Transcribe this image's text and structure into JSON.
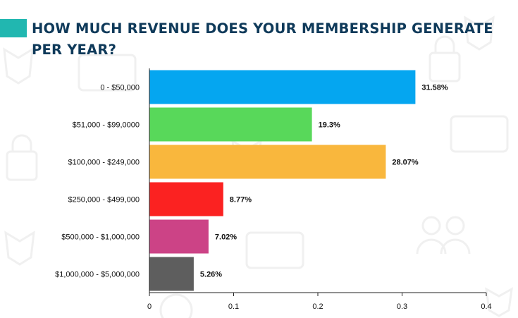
{
  "header": {
    "title": "HOW MUCH REVENUE DOES YOUR MEMBERSHIP GENERATE PER YEAR?",
    "accent_color": "#21b7b0",
    "title_color": "#0f3a5a"
  },
  "chart_data": {
    "type": "bar",
    "orientation": "horizontal",
    "title": "HOW MUCH REVENUE DOES YOUR MEMBERSHIP GENERATE PER YEAR?",
    "categories": [
      "0 -  $50,000",
      "$51,000 - $99,0000",
      "$100,000 - $249,000",
      "$250,000 - $499,000",
      "$500,000 - $1,000,000",
      "$1,000,000 - $5,000,000"
    ],
    "values": [
      0.3158,
      0.193,
      0.2807,
      0.0877,
      0.0702,
      0.0526
    ],
    "data_labels": [
      "31.58%",
      "19.3%",
      "28.07%",
      "8.77%",
      "7.02%",
      "5.26%"
    ],
    "colors": [
      "#05a6f0",
      "#58d85a",
      "#f9b73d",
      "#fb2221",
      "#cc4386",
      "#5e5e5e"
    ],
    "xlim": [
      0,
      0.4
    ],
    "xticks": [
      0,
      0.1,
      0.2,
      0.3,
      0.4
    ],
    "xtick_labels": [
      "0",
      "0.1",
      "0.2",
      "0.3",
      "0.4"
    ],
    "xlabel": "",
    "ylabel": "",
    "grid": false,
    "legend": "none"
  }
}
